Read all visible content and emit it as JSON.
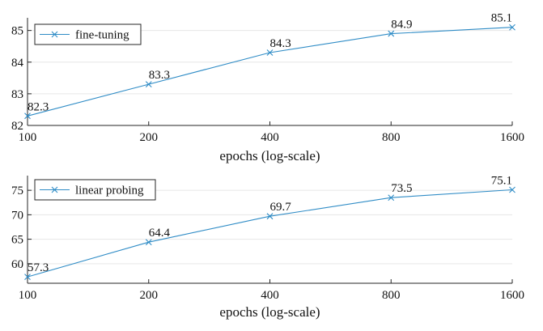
{
  "chart_data": [
    {
      "type": "line",
      "x": [
        100,
        200,
        400,
        800,
        1600
      ],
      "xscale": "log",
      "xlabel": "epochs (log-scale)",
      "ylabel": "",
      "ylim": [
        82,
        85.4
      ],
      "yticks": [
        82,
        83,
        84,
        85
      ],
      "grid": "horizontal",
      "legend_position": "top-left",
      "series": [
        {
          "name": "fine-tuning",
          "values": [
            82.3,
            83.3,
            84.3,
            84.9,
            85.1
          ],
          "labels": [
            "82.3",
            "83.3",
            "84.3",
            "84.9",
            "85.1"
          ],
          "color": "#2f8cc6",
          "marker": "x"
        }
      ]
    },
    {
      "type": "line",
      "x": [
        100,
        200,
        400,
        800,
        1600
      ],
      "xscale": "log",
      "xlabel": "epochs (log-scale)",
      "ylabel": "",
      "ylim": [
        56,
        78
      ],
      "yticks": [
        60,
        65,
        70,
        75
      ],
      "grid": "horizontal",
      "legend_position": "top-left",
      "series": [
        {
          "name": "linear probing",
          "values": [
            57.3,
            64.4,
            69.7,
            73.5,
            75.1
          ],
          "labels": [
            "57.3",
            "64.4",
            "69.7",
            "73.5",
            "75.1"
          ],
          "color": "#2f8cc6",
          "marker": "x"
        }
      ]
    }
  ]
}
